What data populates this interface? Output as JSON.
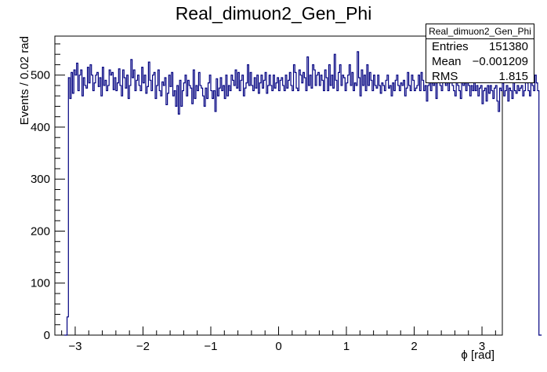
{
  "title": "Real_dimuon2_Gen_Phi",
  "stats": {
    "name": "Real_dimuon2_Gen_Phi",
    "rows": [
      {
        "label": "Entries",
        "value": "151380"
      },
      {
        "label": "Mean",
        "value": "−0.001209"
      },
      {
        "label": "RMS",
        "value": "1.815"
      }
    ]
  },
  "chart_data": {
    "type": "histogram",
    "title": "Real_dimuon2_Gen_Phi",
    "xlabel": "ϕ [rad]",
    "ylabel": "Events / 0.02 rad",
    "xlim": [
      -3.3,
      3.3
    ],
    "ylim": [
      0,
      575
    ],
    "x_ticks": [
      "−3",
      "−2",
      "−1",
      "0",
      "1",
      "2",
      "3"
    ],
    "x_tick_values": [
      -3,
      -2,
      -1,
      0,
      1,
      2,
      3
    ],
    "y_ticks": [
      "0",
      "100",
      "200",
      "300",
      "400",
      "500"
    ],
    "y_tick_values": [
      0,
      100,
      200,
      300,
      400,
      500
    ],
    "bin_width": 0.02,
    "first_bin_low": -3.16,
    "line_color": "#000080",
    "values": [
      0,
      0,
      35,
      495,
      455,
      505,
      465,
      510,
      500,
      523,
      470,
      500,
      510,
      460,
      495,
      480,
      475,
      515,
      485,
      520,
      500,
      470,
      485,
      500,
      505,
      478,
      495,
      460,
      515,
      480,
      490,
      470,
      480,
      510,
      500,
      505,
      472,
      495,
      470,
      485,
      512,
      480,
      460,
      510,
      495,
      475,
      500,
      455,
      480,
      530,
      495,
      510,
      470,
      490,
      500,
      480,
      470,
      515,
      485,
      500,
      465,
      478,
      525,
      490,
      470,
      500,
      505,
      455,
      480,
      510,
      470,
      460,
      487,
      480,
      495,
      443,
      465,
      500,
      478,
      505,
      460,
      470,
      440,
      480,
      425,
      490,
      440,
      470,
      485,
      500,
      460,
      490,
      480,
      475,
      445,
      510,
      455,
      480,
      470,
      505,
      480,
      475,
      460,
      440,
      475,
      455,
      485,
      500,
      470,
      455,
      470,
      430,
      493,
      460,
      475,
      495,
      470,
      480,
      455,
      500,
      460,
      480,
      470,
      500,
      490,
      480,
      510,
      475,
      505,
      470,
      490,
      500,
      460,
      475,
      485,
      520,
      480,
      505,
      480,
      470,
      495,
      475,
      500,
      465,
      485,
      500,
      475,
      490,
      505,
      465,
      480,
      500,
      480,
      470,
      500,
      475,
      485,
      495,
      470,
      490,
      495,
      480,
      470,
      500,
      475,
      490,
      505,
      480,
      470,
      520,
      505,
      475,
      470,
      510,
      500,
      485,
      505,
      495,
      470,
      535,
      480,
      500,
      475,
      520,
      510,
      480,
      500,
      505,
      480,
      500,
      490,
      470,
      510,
      495,
      470,
      520,
      480,
      500,
      475,
      540,
      490,
      470,
      505,
      520,
      480,
      500,
      495,
      470,
      485,
      500,
      520,
      480,
      505,
      470,
      485,
      480,
      545,
      495,
      460,
      510,
      480,
      500,
      470,
      520,
      480,
      505,
      490,
      470,
      500,
      480,
      475,
      500,
      480,
      465,
      485,
      480,
      470,
      490,
      500,
      475,
      480,
      460,
      485,
      470,
      490,
      500,
      480,
      470,
      485,
      480,
      490,
      460,
      475,
      505,
      480,
      470,
      500,
      490,
      470,
      475,
      480,
      500,
      470,
      505,
      490,
      470,
      480,
      450,
      480,
      500,
      470,
      485,
      480,
      500,
      455,
      490,
      510,
      480,
      470,
      500,
      490,
      480,
      505,
      470,
      485,
      500,
      480,
      470,
      460,
      495,
      480,
      470,
      455,
      500,
      480,
      485,
      470,
      505,
      480,
      460,
      480,
      470,
      490,
      470,
      480,
      460,
      475,
      480,
      445,
      470,
      475,
      450,
      480,
      465,
      480,
      470,
      455,
      475,
      480,
      450,
      430,
      475,
      470,
      485,
      460,
      470,
      480,
      450,
      475,
      470,
      455,
      490,
      470,
      465,
      480,
      470,
      475,
      480,
      460,
      470,
      500,
      485,
      470,
      460,
      495,
      480,
      470,
      500,
      485,
      470,
      0,
      0
    ]
  }
}
